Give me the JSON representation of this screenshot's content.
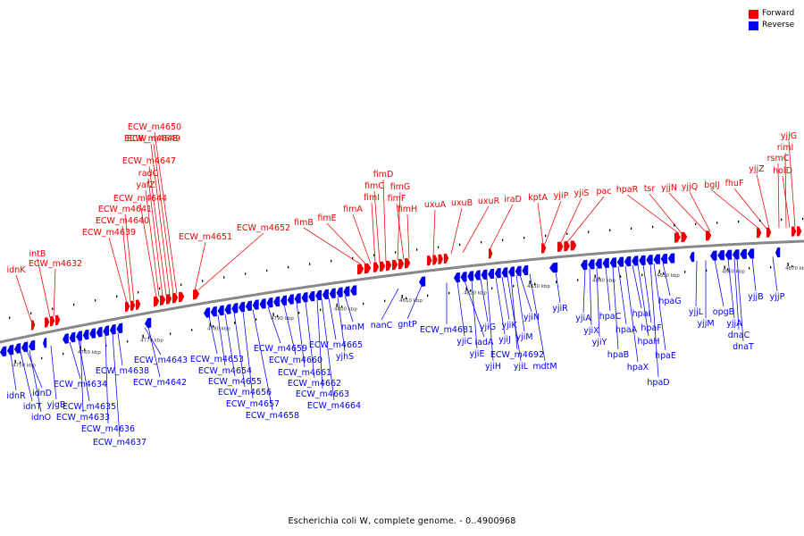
{
  "legend": {
    "forward": "Forward",
    "reverse": "Reverse"
  },
  "colors": {
    "forward": "#ee0000",
    "reverse": "#0000ee",
    "backbone": "#888888"
  },
  "caption": "Escherichia coli W, complete genome. - 0..4900968",
  "ticks": [
    "4750 kbp",
    "4760 kbp",
    "4770 kbp",
    "4780 kbp",
    "4790 kbp",
    "4800 kbp",
    "4810 kbp",
    "4820 kbp",
    "4830 kbp",
    "4840 kbp",
    "4850 kbp",
    "4860 kbp",
    "4870 kbp"
  ],
  "forward_labels": [
    "idnK",
    "intB",
    "ECW_m4632",
    "ECW_m4639",
    "ECW_m4640",
    "ECW_m4641",
    "ECW_m4644",
    "yafZ",
    "radC",
    "ECW_m4647",
    "ECW_m4648",
    "ECW_m4649",
    "ECW_m4650",
    "ECW_m4651",
    "ECW_m4652",
    "fimB",
    "fimE",
    "fimA",
    "fimI",
    "fimC",
    "fimD",
    "fimG",
    "fimF",
    "fimH",
    "uxuA",
    "uxuB",
    "uxuR",
    "iraD",
    "kptA",
    "yjiP",
    "yjiS",
    "pac",
    "hpaR",
    "tsr",
    "yjjN",
    "yjjQ",
    "bglJ",
    "fhuF",
    "yjjZ",
    "rsmC",
    "rimI",
    "holD",
    "yjjG"
  ],
  "reverse_labels": [
    "idnR",
    "idnT",
    "idnD",
    "idnO",
    "yjgB",
    "ECW_m4634",
    "ECW_m4635",
    "ECW_m4633",
    "ECW_m4636",
    "ECW_m4637",
    "ECW_m4638",
    "ECW_m4643",
    "ECW_m4642",
    "ECW_m4653",
    "ECW_m4654",
    "ECW_m4655",
    "ECW_m4656",
    "ECW_m4657",
    "ECW_m4658",
    "ECW_m4659",
    "ECW_m4660",
    "ECW_m4661",
    "ECW_m4662",
    "ECW_m4663",
    "ECW_m4664",
    "ECW_m4665",
    "yjhS",
    "nanM",
    "nanC",
    "gntP",
    "ECW_m4681",
    "yjiC",
    "iadA",
    "yjiE",
    "yjiG",
    "yjiH",
    "yjiJ",
    "yjiK",
    "yjiL",
    "ECW_m4692",
    "yjiM",
    "yjiN",
    "mdtM",
    "yjiR",
    "yjiA",
    "yjiX",
    "yjiY",
    "hpaC",
    "hpaB",
    "hpaA",
    "hpaX",
    "hpaI",
    "hpaH",
    "hpaF",
    "hpaD",
    "hpaE",
    "hpaG",
    "yjjL",
    "yjjM",
    "opgB",
    "yjjA",
    "dnaC",
    "dnaT",
    "yjjB",
    "yjjP"
  ]
}
